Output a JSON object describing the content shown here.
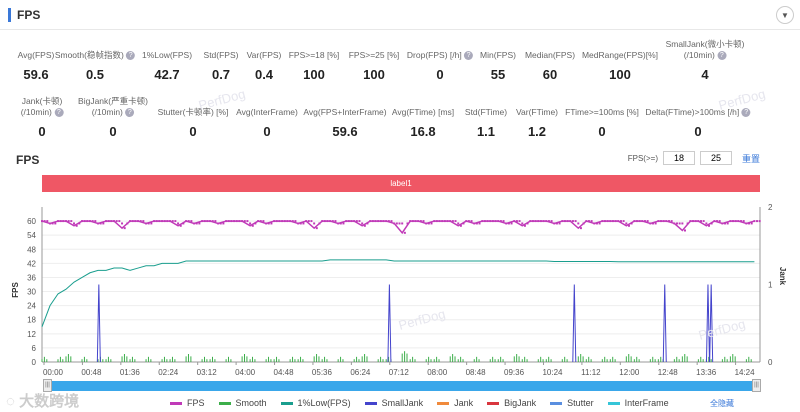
{
  "header": {
    "title": "FPS",
    "collapse_icon": "chevron-down-icon"
  },
  "metrics_row1": [
    {
      "label": "Avg(FPS)",
      "value": "59.6",
      "help": false
    },
    {
      "label": "Smooth(稳帧指数)",
      "value": "0.5",
      "help": true
    },
    {
      "label": "1%Low(FPS)",
      "value": "42.7",
      "help": false
    },
    {
      "label": "Std(FPS)",
      "value": "0.7",
      "help": false
    },
    {
      "label": "Var(FPS)",
      "value": "0.4",
      "help": false
    },
    {
      "label": "FPS>=18 [%]",
      "value": "100",
      "help": false
    },
    {
      "label": "FPS>=25 [%]",
      "value": "100",
      "help": false
    },
    {
      "label": "Drop(FPS) [/h]",
      "value": "0",
      "help": true
    },
    {
      "label": "Min(FPS)",
      "value": "55",
      "help": false
    },
    {
      "label": "Median(FPS)",
      "value": "60",
      "help": false
    },
    {
      "label": "MedRange(FPS)[%]",
      "value": "100",
      "help": false
    },
    {
      "label": "SmallJank(微小卡顿)",
      "label2": "(/10min)",
      "value": "4",
      "help": true
    }
  ],
  "metrics_row2": [
    {
      "label": "Jank(卡顿)",
      "label2": "(/10min)",
      "value": "0",
      "help": true
    },
    {
      "label": "BigJank(严重卡顿)",
      "label2": "(/10min)",
      "value": "0",
      "help": true
    },
    {
      "label": "Stutter(卡顿率) [%]",
      "value": "0",
      "help": false
    },
    {
      "label": "Avg(InterFrame)",
      "value": "0",
      "help": false
    },
    {
      "label": "Avg(FPS+InterFrame)",
      "value": "59.6",
      "help": false
    },
    {
      "label": "Avg(FTime) [ms]",
      "value": "16.8",
      "help": false
    },
    {
      "label": "Std(FTime)",
      "value": "1.1",
      "help": false
    },
    {
      "label": "Var(FTime)",
      "value": "1.2",
      "help": false
    },
    {
      "label": "FTime>=100ms [%]",
      "value": "0",
      "help": false
    },
    {
      "label": "Delta(FTime)>100ms [/h]",
      "value": "0",
      "help": true
    }
  ],
  "chart_section": {
    "title": "FPS",
    "fps_threshold_label": "FPS(>=)",
    "threshold1": "18",
    "threshold2": "25",
    "reset_label": "重置",
    "band_label": "label1",
    "hide_all_label": "全隐藏",
    "watermark": "PerfDog"
  },
  "chart_data": {
    "type": "line",
    "xlabel": "",
    "ylabel": "FPS",
    "y2label": "Jank",
    "x_ticks": [
      "00:00",
      "00:48",
      "01:36",
      "02:24",
      "03:12",
      "04:00",
      "04:48",
      "05:36",
      "06:24",
      "07:12",
      "08:00",
      "08:48",
      "09:36",
      "10:24",
      "11:12",
      "12:00",
      "12:48",
      "13:36",
      "14:24"
    ],
    "y_ticks": [
      0,
      6,
      12,
      18,
      24,
      30,
      36,
      42,
      48,
      54,
      60
    ],
    "y2_ticks": [
      0,
      1,
      2
    ],
    "ylim": [
      0,
      66
    ],
    "y2lim": [
      0,
      2
    ],
    "x_range_seconds": [
      0,
      897
    ],
    "sample_interval_seconds": 10,
    "series": [
      {
        "name": "FPS",
        "color": "#c03ab8",
        "values": [
          60,
          59,
          60,
          60,
          58,
          60,
          60,
          59,
          60,
          60,
          57,
          60,
          60,
          59,
          60,
          60,
          60,
          58,
          60,
          59,
          60,
          60,
          59,
          60,
          60,
          60,
          58,
          60,
          59,
          60,
          60,
          60,
          59,
          60,
          57,
          60,
          60,
          59,
          60,
          60,
          58,
          60,
          60,
          60,
          59,
          55,
          60,
          60,
          59,
          60,
          60,
          60,
          58,
          60,
          59,
          60,
          60,
          60,
          59,
          60,
          58,
          60,
          60,
          60,
          59,
          60,
          60,
          57,
          60,
          59,
          60,
          60,
          60,
          58,
          60,
          60,
          59,
          60,
          60,
          59,
          56,
          60,
          60,
          58,
          60,
          59,
          60,
          60,
          59,
          60
        ]
      },
      {
        "name": "Smooth",
        "color": "#3cae4a",
        "values": [
          1,
          0,
          1,
          2,
          0,
          1,
          0,
          1,
          1,
          0,
          2,
          1,
          0,
          1,
          0,
          1,
          1,
          0,
          2,
          0,
          1,
          1,
          0,
          1,
          0,
          2,
          1,
          0,
          1,
          1,
          0,
          1,
          1,
          0,
          2,
          1,
          0,
          1,
          0,
          1,
          2,
          0,
          1,
          1,
          0,
          3,
          1,
          0,
          1,
          1,
          0,
          2,
          1,
          0,
          1,
          0,
          1,
          1,
          0,
          2,
          1,
          0,
          1,
          1,
          0,
          1,
          0,
          2,
          1,
          0,
          1,
          1,
          0,
          2,
          1,
          0,
          1,
          1,
          0,
          1,
          2,
          0,
          1,
          1,
          0,
          1,
          2,
          0,
          1,
          0
        ]
      },
      {
        "name": "1%Low(FPS)",
        "color": "#1a9e8e",
        "values": [
          15,
          24,
          29,
          31,
          34,
          36,
          38,
          39,
          39,
          40,
          40,
          39,
          40,
          41,
          41,
          42,
          42,
          42,
          43,
          43,
          43,
          43,
          43,
          43,
          43,
          43,
          43,
          43,
          43,
          43,
          43,
          43,
          43,
          43,
          43,
          43,
          43.5,
          43.5,
          43.5,
          43.5,
          43.5,
          43.5,
          43.5,
          43.5,
          43,
          43,
          43,
          43,
          43,
          43,
          43,
          43,
          43,
          43,
          43,
          43,
          43,
          43,
          43,
          43,
          43,
          43,
          43,
          43,
          42.8,
          42.8,
          42.8,
          42.8,
          42.8,
          42.8,
          42.8,
          42.8,
          42.7,
          42.7,
          42.7,
          42.7,
          42.7,
          42.7,
          42.7,
          42.7,
          42.7,
          42.7,
          42.7,
          42.7,
          42.7,
          42.7,
          42.7,
          42.7,
          42.7,
          42.7
        ]
      },
      {
        "name": "SmallJank",
        "color": "#4444cc",
        "events_seconds": [
          71,
          434,
          665,
          778,
          832,
          836
        ],
        "value": 1
      },
      {
        "name": "Jank",
        "color": "#f08a3c",
        "events_seconds": []
      },
      {
        "name": "BigJank",
        "color": "#d9363e",
        "events_seconds": []
      },
      {
        "name": "Stutter",
        "color": "#5a8fe0",
        "values": []
      },
      {
        "name": "InterFrame",
        "color": "#35c5d8",
        "values": []
      }
    ],
    "grid": true,
    "legend_position": "bottom"
  }
}
